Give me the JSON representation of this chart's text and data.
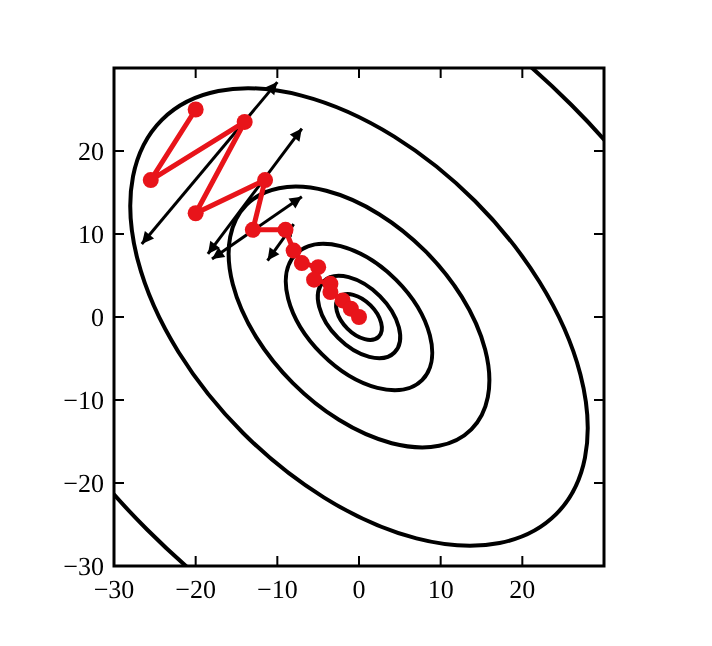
{
  "chart_data": {
    "type": "line",
    "xlim": [
      -30,
      30
    ],
    "ylim": [
      -30,
      30
    ],
    "xticks": [
      {
        "value": -30,
        "label": "−30"
      },
      {
        "value": -20,
        "label": "−20"
      },
      {
        "value": -10,
        "label": "−10"
      },
      0,
      10,
      20,
      {
        "value": 30,
        "label": null
      }
    ],
    "yticks": [
      {
        "value": -30,
        "label": "−30"
      },
      {
        "value": -20,
        "label": "−20"
      },
      {
        "value": -10,
        "label": "−10"
      },
      0,
      10,
      20,
      {
        "value": 30,
        "label": null
      }
    ],
    "grid": false,
    "line_style": "solid",
    "series": [
      {
        "color": "#e8141a",
        "marker": "circle",
        "x": [
          -20,
          -25.5,
          -14,
          -20,
          -11.5,
          -13,
          -9,
          -8,
          -7,
          -5,
          -5.5,
          -3.5,
          -3.5,
          -2,
          -1,
          0
        ],
        "values": [
          25,
          16.5,
          23.5,
          12.5,
          16.5,
          10.5,
          10.5,
          8,
          6.5,
          6,
          4.5,
          4,
          3,
          2,
          1,
          0
        ]
      }
    ]
  }
}
